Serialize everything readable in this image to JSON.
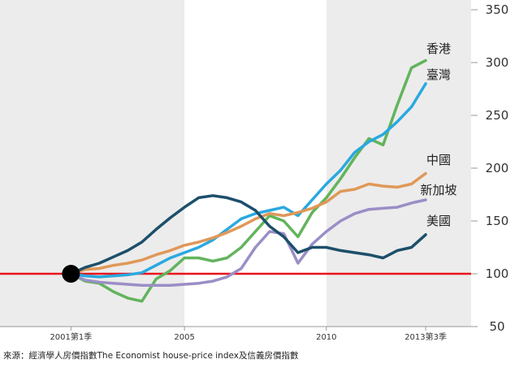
{
  "chart_data": {
    "type": "line",
    "source": "來源：經濟學人房價指數The Economist house-price index及信義房價指數",
    "x": [
      2001,
      2001.5,
      2002,
      2002.5,
      2003,
      2003.5,
      2004,
      2004.5,
      2005,
      2005.5,
      2006,
      2006.5,
      2007,
      2007.5,
      2008,
      2008.5,
      2009,
      2009.5,
      2010,
      2010.5,
      2011,
      2011.5,
      2012,
      2012.5,
      2013,
      2013.5
    ],
    "xlim": [
      1998.5,
      2015.1
    ],
    "xticks": [
      {
        "value": 2001,
        "label": "2001第1季"
      },
      2005,
      2010,
      {
        "value": 2013.5,
        "label": "2013第3季"
      }
    ],
    "ylim": [
      50,
      350
    ],
    "yticks": [
      50,
      100,
      150,
      200,
      250,
      300,
      350
    ],
    "shaded_ranges": [
      [
        1998.5,
        2005
      ],
      [
        2010,
        2015.1
      ]
    ],
    "baseline": 100,
    "baseline_color": "#e8141c",
    "series": [
      {
        "name": "香港",
        "color": "#62b45c",
        "values": [
          100,
          93,
          91,
          83,
          77,
          74,
          95,
          103,
          115,
          115,
          112,
          115,
          125,
          140,
          155,
          150,
          135,
          158,
          172,
          190,
          210,
          228,
          222,
          260,
          295,
          302
        ]
      },
      {
        "name": "臺灣",
        "color": "#2aa8e0",
        "values": [
          100,
          98,
          97,
          98,
          99,
          101,
          108,
          115,
          120,
          125,
          132,
          142,
          152,
          157,
          160,
          163,
          155,
          170,
          185,
          198,
          215,
          225,
          232,
          244,
          258,
          280
        ]
      },
      {
        "name": "中國",
        "color": "#e09858",
        "values": [
          100,
          104,
          105,
          108,
          110,
          113,
          118,
          122,
          127,
          130,
          134,
          139,
          145,
          152,
          157,
          155,
          158,
          162,
          168,
          178,
          180,
          185,
          183,
          182,
          185,
          195
        ]
      },
      {
        "name": "新加坡",
        "color": "#9b8ec6",
        "values": [
          100,
          94,
          92,
          91,
          90,
          89,
          89,
          89,
          90,
          91,
          93,
          97,
          105,
          125,
          140,
          138,
          110,
          128,
          140,
          150,
          157,
          161,
          162,
          163,
          167,
          170
        ]
      },
      {
        "name": "美國",
        "color": "#1c4f6a",
        "values": [
          100,
          106,
          110,
          116,
          122,
          130,
          142,
          153,
          163,
          172,
          174,
          172,
          168,
          160,
          145,
          135,
          120,
          125,
          125,
          122,
          120,
          118,
          115,
          122,
          125,
          137
        ]
      }
    ]
  }
}
